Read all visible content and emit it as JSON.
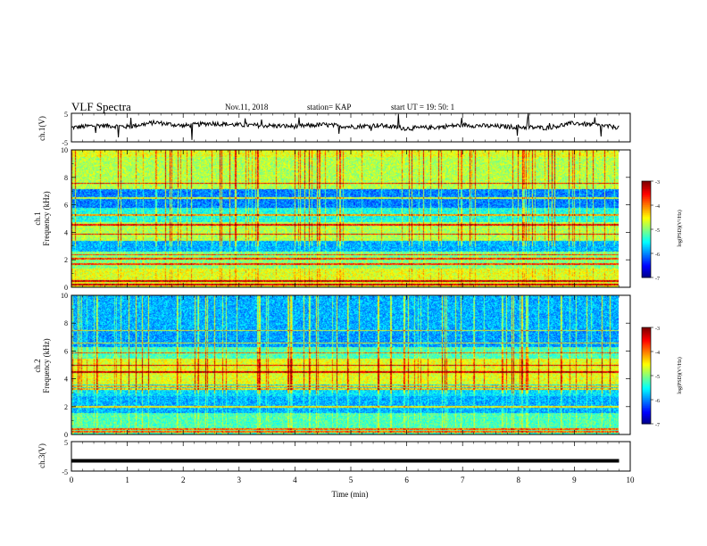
{
  "header": {
    "title": "VLF Spectra",
    "date": "Nov.11, 2018",
    "station": "station= KAP",
    "start_ut": "start  UT =   19: 50: 1"
  },
  "chart_data": [
    {
      "type": "line",
      "id": "ch1_waveform",
      "ylabel": "ch.1(V)",
      "ylim": [
        -5,
        5
      ],
      "yticks": [
        "5",
        "-5"
      ],
      "xlim": [
        0,
        10
      ],
      "description_values_note": "noisy trace, mean ~0.2 V, amplitude ~±1.5 V",
      "x": [
        0,
        0.5,
        1,
        1.5,
        2,
        2.5,
        3,
        3.5,
        4,
        4.5,
        5,
        5.5,
        6,
        6.5,
        7,
        7.5,
        8,
        8.5,
        9,
        9.5,
        9.8
      ],
      "y": [
        0.0,
        0.8,
        0.3,
        1.8,
        0.6,
        1.5,
        0.9,
        0.7,
        0.4,
        1.0,
        0.3,
        0.8,
        -0.3,
        0.1,
        0.9,
        0.5,
        0.2,
        -0.1,
        1.6,
        0.6,
        0.1
      ]
    },
    {
      "type": "heatmap",
      "id": "ch1_spectrogram",
      "ylabel_line1": "ch.1",
      "ylabel_line2": "Frequency (kHz)",
      "ylim": [
        0,
        10
      ],
      "yticks": [
        "0",
        "2",
        "4",
        "6",
        "8",
        "10"
      ],
      "xlim": [
        0,
        10
      ],
      "colorbar": {
        "label": "log(PSD)(V²/Hz)",
        "range": [
          -7,
          -3
        ],
        "ticks": [
          "-3",
          "-4",
          "-5",
          "-6",
          "-7"
        ]
      }
    },
    {
      "type": "heatmap",
      "id": "ch2_spectrogram",
      "ylabel_line1": "ch.2",
      "ylabel_line2": "Frequency (kHz)",
      "ylim": [
        0,
        10
      ],
      "yticks": [
        "0",
        "2",
        "4",
        "6",
        "8",
        "10"
      ],
      "xlim": [
        0,
        10
      ],
      "colorbar": {
        "label": "log(PSD)(V²/Hz)",
        "range": [
          -7,
          -3
        ],
        "ticks": [
          "-3",
          "-4",
          "-5",
          "-6",
          "-7"
        ]
      }
    },
    {
      "type": "line",
      "id": "ch3_waveform",
      "ylabel": "ch.3(V)",
      "ylim": [
        -5,
        5
      ],
      "yticks": [
        "5",
        "-5"
      ],
      "xlim": [
        0,
        10
      ],
      "x": [
        0,
        9.8
      ],
      "y": [
        -1.5,
        -1.5
      ],
      "xlabel": "Time (min)",
      "xticks": [
        "0",
        "1",
        "2",
        "3",
        "4",
        "5",
        "6",
        "7",
        "8",
        "9",
        "10"
      ]
    }
  ]
}
